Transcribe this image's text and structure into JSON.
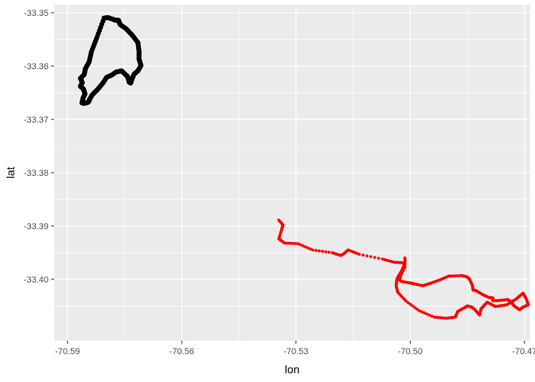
{
  "chart_data": {
    "type": "scatter",
    "title": "",
    "xlabel": "lon",
    "ylabel": "lat",
    "xlim": [
      -70.5935,
      -70.4685
    ],
    "ylim": [
      -33.4115,
      -33.3485
    ],
    "grid": true,
    "x_ticks": [
      -70.59,
      -70.56,
      -70.53,
      -70.5,
      -70.47
    ],
    "x_tick_labels": [
      "-70.59",
      "-70.56",
      "-70.53",
      "-70.50",
      "-70.47"
    ],
    "y_ticks": [
      -33.35,
      -33.36,
      -33.37,
      -33.38,
      -33.39,
      -33.4
    ],
    "y_tick_labels": [
      "-33.35",
      "-33.36",
      "-33.37",
      "-33.38",
      "-33.39",
      "-33.40"
    ],
    "colors": {
      "panel": "#ebebeb",
      "grid": "#ffffff"
    },
    "series": [
      {
        "color": "#000000",
        "x": [
          -70.5843,
          -70.5846,
          -70.5857,
          -70.5862,
          -70.5859,
          -70.5854,
          -70.5858,
          -70.5866,
          -70.5861,
          -70.5866,
          -70.5856,
          -70.5853,
          -70.5843,
          -70.5837,
          -70.5822,
          -70.5804,
          -70.5793,
          -70.5778,
          -70.5774,
          -70.5766,
          -70.5762,
          -70.5746,
          -70.573,
          -70.5715,
          -70.5712,
          -70.5712,
          -70.5707,
          -70.5715,
          -70.5725,
          -70.5731,
          -70.5734,
          -70.5738,
          -70.5742,
          -70.5746,
          -70.5758,
          -70.5772,
          -70.5784,
          -70.5797,
          -70.5807,
          -70.5821,
          -70.5835,
          -70.5843
        ],
        "y": [
          -33.3665,
          -33.3668,
          -33.367,
          -33.3669,
          -33.366,
          -33.3652,
          -33.3643,
          -33.3638,
          -33.3631,
          -33.3623,
          -33.3616,
          -33.3605,
          -33.3592,
          -33.3573,
          -33.3545,
          -33.351,
          -33.3509,
          -33.3513,
          -33.3514,
          -33.3514,
          -33.3522,
          -33.353,
          -33.3542,
          -33.3556,
          -33.3573,
          -33.3587,
          -33.3599,
          -33.3609,
          -33.3615,
          -33.3625,
          -33.3632,
          -33.363,
          -33.362,
          -33.3617,
          -33.3609,
          -33.3611,
          -33.3617,
          -33.3621,
          -33.3632,
          -33.3644,
          -33.3654,
          -33.3664
        ]
      },
      {
        "color": "#ff0000",
        "x": [
          -70.5345,
          -70.5334,
          -70.5337,
          -70.5345,
          -70.533,
          -70.5295,
          -70.5256,
          -70.5205,
          -70.5184,
          -70.5178,
          -70.5163,
          -70.5134,
          -70.5073,
          -70.5042,
          -70.5018,
          -70.5014,
          -70.5025,
          -70.5028,
          -70.5023,
          -70.4999,
          -70.4987,
          -70.4967,
          -70.4949,
          -70.4922,
          -70.4899,
          -70.4865,
          -70.4852,
          -70.4845,
          -70.4837,
          -70.4835,
          -70.4828,
          -70.4809,
          -70.4794,
          -70.4783,
          -70.4783,
          -70.4771,
          -70.4744,
          -70.4736,
          -70.4727,
          -70.4713,
          -70.4704,
          -70.469,
          -70.4695,
          -70.4704,
          -70.4722,
          -70.4747,
          -70.4776,
          -70.4798,
          -70.4814,
          -70.4818,
          -70.483,
          -70.4839,
          -70.485,
          -70.4857,
          -70.4875,
          -70.4882,
          -70.4905,
          -70.4937,
          -70.4976,
          -70.5011,
          -70.5033,
          -70.5037,
          -70.5035,
          -70.5022,
          -70.5014,
          -70.5014
        ],
        "y": [
          -33.3889,
          -33.3898,
          -33.3905,
          -33.3924,
          -33.3932,
          -33.3933,
          -33.3945,
          -33.395,
          -33.3955,
          -33.3954,
          -33.3945,
          -33.3953,
          -33.3962,
          -33.3968,
          -33.3969,
          -33.3977,
          -33.3992,
          -33.4001,
          -33.4004,
          -33.4007,
          -33.4009,
          -33.4012,
          -33.4008,
          -33.4001,
          -33.3994,
          -33.3993,
          -33.3995,
          -33.3999,
          -33.4011,
          -33.402,
          -33.4021,
          -33.4029,
          -33.4034,
          -33.4035,
          -33.404,
          -33.404,
          -33.4038,
          -33.4042,
          -33.405,
          -33.4057,
          -33.4052,
          -33.4048,
          -33.4037,
          -33.4026,
          -33.4037,
          -33.4048,
          -33.4051,
          -33.4043,
          -33.4055,
          -33.4067,
          -33.4057,
          -33.4052,
          -33.405,
          -33.4053,
          -33.406,
          -33.4071,
          -33.4073,
          -33.4071,
          -33.4059,
          -33.4041,
          -33.4024,
          -33.4012,
          -33.3999,
          -33.3983,
          -33.3971,
          -33.396
        ]
      }
    ]
  }
}
